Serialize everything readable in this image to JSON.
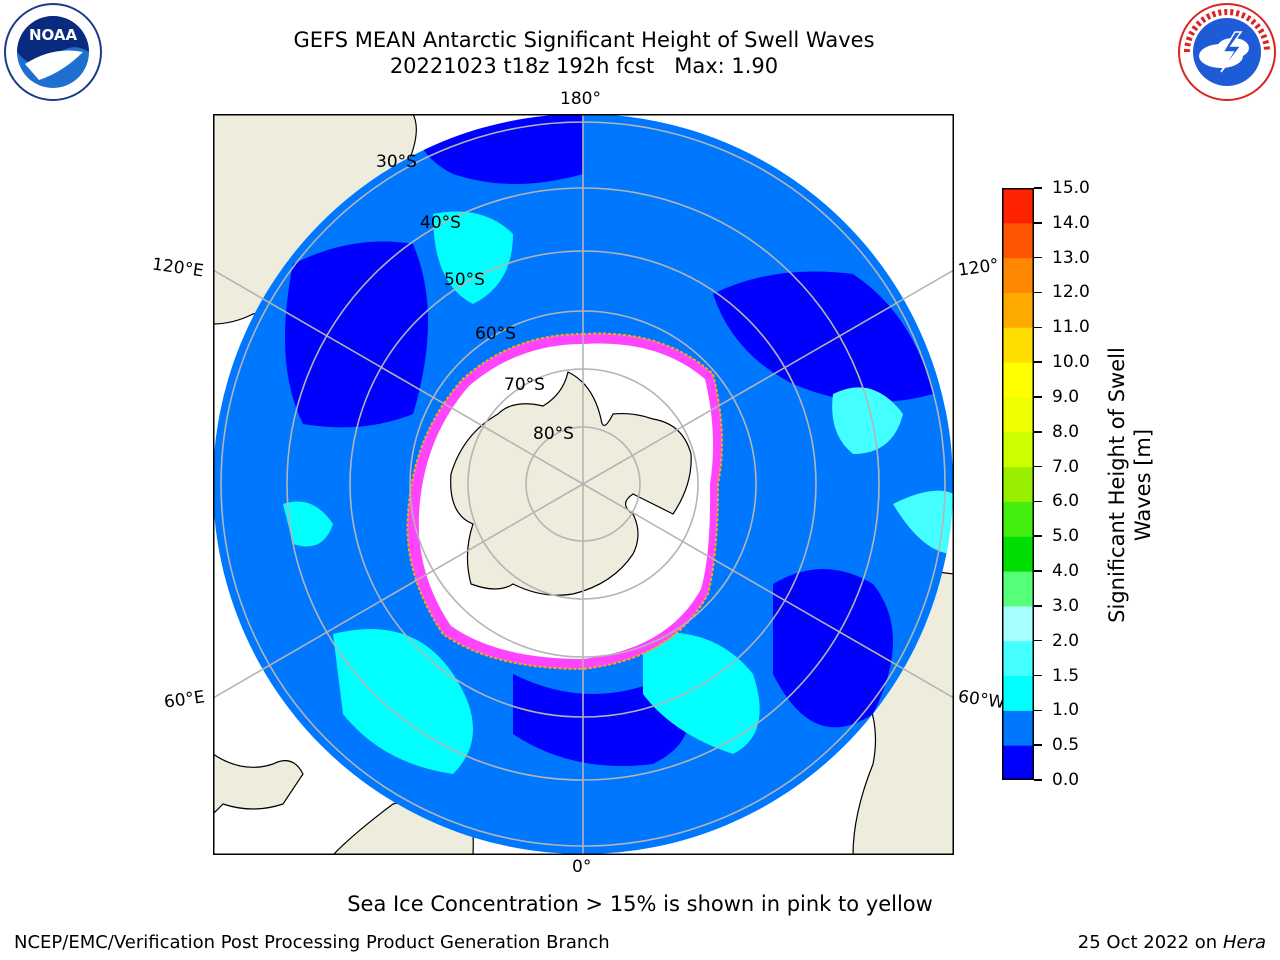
{
  "header": {
    "title": "GEFS MEAN Antarctic Significant Height of Swell Waves",
    "subtitle": "20221023 t18z 192h fcst   Max: 1.90"
  },
  "logos": {
    "left": "noaa-logo",
    "right": "nws-logo"
  },
  "map": {
    "projection": "south-polar-stereographic",
    "longitude_labels": {
      "top": "180°",
      "bottom": "0°",
      "upper_left": "120°E",
      "lower_left": "60°E",
      "upper_right": "120°",
      "lower_right": "60°W"
    },
    "latitude_labels": [
      "30°S",
      "40°S",
      "50°S",
      "60°S",
      "70°S",
      "80°S"
    ],
    "colors": {
      "land": "#eeecdc",
      "ice_free_center": "#ffffff",
      "grid": "#b4b4b4",
      "ice_edge": "#ff44ff"
    }
  },
  "colorbar": {
    "label": "Significant Height of Swell Waves [m]",
    "tick_labels": [
      "0.0",
      "0.5",
      "1.0",
      "1.5",
      "2.0",
      "3.0",
      "4.0",
      "5.0",
      "6.0",
      "7.0",
      "8.0",
      "9.0",
      "10.0",
      "11.0",
      "12.0",
      "13.0",
      "14.0",
      "15.0"
    ],
    "colors": [
      "#0000ff",
      "#0077ff",
      "#00ffff",
      "#44ffff",
      "#a8ffff",
      "#55ff77",
      "#00dd00",
      "#44ee11",
      "#99ee00",
      "#ccff00",
      "#eeff00",
      "#ffff00",
      "#ffdd00",
      "#ffaa00",
      "#ff8800",
      "#ff5500",
      "#ff2200",
      "#ff0000"
    ]
  },
  "note": "Sea Ice Concentration > 15% is shown in pink to yellow",
  "footer": {
    "left": "NCEP/EMC/Verification Post Processing Product Generation Branch",
    "right_date": "25 Oct 2022 on",
    "right_machine": "Hera"
  }
}
